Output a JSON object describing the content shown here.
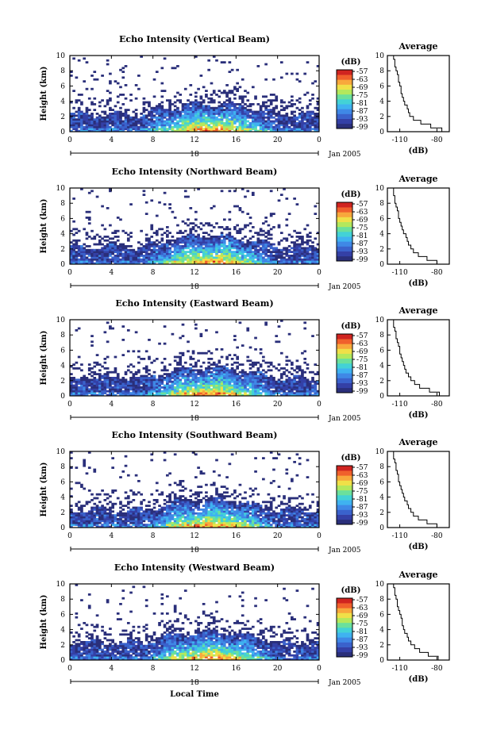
{
  "colors": {
    "scale": [
      "#2a2f7a",
      "#3440a6",
      "#3a62cc",
      "#3f88e6",
      "#3fb2f0",
      "#43d2d6",
      "#6be09c",
      "#b4e85c",
      "#f0e048",
      "#f8a83c",
      "#f0602c",
      "#d02420"
    ]
  },
  "figure": {
    "xlabel": "Local Time",
    "date_label": "Jan 2005"
  },
  "chart_data": [
    {
      "type": "heatmap",
      "title": "Echo Intensity (Vertical Beam)",
      "ylabel": "Height (km)",
      "x_ticks": [
        "0",
        "4",
        "8",
        "12",
        "16",
        "20",
        "0"
      ],
      "x_range": [
        0,
        24
      ],
      "y_ticks": [
        "0",
        "2",
        "4",
        "6",
        "8",
        "10"
      ],
      "y_range": [
        0,
        10
      ],
      "day_label": "18",
      "colorbar": {
        "unit": "(dB)",
        "ticks": [
          "-57",
          "-63",
          "-69",
          "-75",
          "-81",
          "-87",
          "-93",
          "-99"
        ]
      },
      "profile": {
        "title": "Average",
        "xlabel": "(dB)",
        "x_ticks": [
          "-110",
          "-80"
        ],
        "y_ticks": [
          "0",
          "2",
          "4",
          "6",
          "8",
          "10"
        ],
        "height_km": [
          0,
          0.5,
          1,
          1.5,
          2,
          2.5,
          3,
          3.5,
          4,
          4.5,
          5,
          5.5,
          6,
          6.5,
          7,
          7.5,
          8,
          8.5,
          9,
          9.5
        ],
        "echo_db": [
          -76,
          -85,
          -93,
          -99,
          -102,
          -103,
          -104,
          -106,
          -107,
          -108,
          -109,
          -109,
          -110,
          -111,
          -111,
          -112,
          -113,
          -114,
          -114,
          -115
        ]
      }
    },
    {
      "type": "heatmap",
      "title": "Echo Intensity (Northward Beam)",
      "ylabel": "Height (km)",
      "x_ticks": [
        "0",
        "4",
        "8",
        "12",
        "16",
        "20",
        "0"
      ],
      "x_range": [
        0,
        24
      ],
      "y_ticks": [
        "0",
        "2",
        "4",
        "6",
        "8",
        "10"
      ],
      "y_range": [
        0,
        10
      ],
      "day_label": "18",
      "colorbar": {
        "unit": "(dB)",
        "ticks": [
          "-57",
          "-63",
          "-69",
          "-75",
          "-81",
          "-87",
          "-93",
          "-99"
        ]
      },
      "profile": {
        "title": "Average",
        "xlabel": "(dB)",
        "x_ticks": [
          "-110",
          "-80"
        ],
        "y_ticks": [
          "0",
          "2",
          "4",
          "6",
          "8",
          "10"
        ],
        "height_km": [
          0,
          0.5,
          1,
          1.5,
          2,
          2.5,
          3,
          3.5,
          4,
          4.5,
          5,
          5.5,
          6,
          6.5,
          7,
          7.5,
          8,
          8.5,
          9,
          9.5
        ],
        "echo_db": [
          -80,
          -88,
          -95,
          -99,
          -101,
          -103,
          -104,
          -105,
          -107,
          -108,
          -109,
          -110,
          -111,
          -111,
          -112,
          -113,
          -114,
          -114,
          -115,
          -115
        ]
      }
    },
    {
      "type": "heatmap",
      "title": "Echo Intensity (Eastward Beam)",
      "ylabel": "Height (km)",
      "x_ticks": [
        "0",
        "4",
        "8",
        "12",
        "16",
        "20",
        "0"
      ],
      "x_range": [
        0,
        24
      ],
      "y_ticks": [
        "0",
        "2",
        "4",
        "6",
        "8",
        "10"
      ],
      "y_range": [
        0,
        10
      ],
      "day_label": "18",
      "colorbar": {
        "unit": "(dB)",
        "ticks": [
          "-57",
          "-63",
          "-69",
          "-75",
          "-81",
          "-87",
          "-93",
          "-99"
        ]
      },
      "profile": {
        "title": "Average",
        "xlabel": "(dB)",
        "x_ticks": [
          "-110",
          "-80"
        ],
        "y_ticks": [
          "0",
          "2",
          "4",
          "6",
          "8",
          "10"
        ],
        "height_km": [
          0,
          0.5,
          1,
          1.5,
          2,
          2.5,
          3,
          3.5,
          4,
          4.5,
          5,
          5.5,
          6,
          6.5,
          7,
          7.5,
          8,
          8.5,
          9,
          9.5
        ],
        "echo_db": [
          -78,
          -86,
          -94,
          -98,
          -101,
          -103,
          -105,
          -106,
          -107,
          -108,
          -109,
          -110,
          -110,
          -111,
          -112,
          -113,
          -113,
          -114,
          -115,
          -115
        ]
      }
    },
    {
      "type": "heatmap",
      "title": "Echo Intensity (Southward Beam)",
      "ylabel": "Height (km)",
      "x_ticks": [
        "0",
        "4",
        "8",
        "12",
        "16",
        "20",
        "0"
      ],
      "x_range": [
        0,
        24
      ],
      "y_ticks": [
        "0",
        "2",
        "4",
        "6",
        "8",
        "10"
      ],
      "y_range": [
        0,
        10
      ],
      "day_label": "18",
      "colorbar": {
        "unit": "(dB)",
        "ticks": [
          "-57",
          "-63",
          "-69",
          "-75",
          "-81",
          "-87",
          "-93",
          "-99"
        ]
      },
      "profile": {
        "title": "Average",
        "xlabel": "(dB)",
        "x_ticks": [
          "-110",
          "-80"
        ],
        "y_ticks": [
          "0",
          "2",
          "4",
          "6",
          "8",
          "10"
        ],
        "height_km": [
          0,
          0.5,
          1,
          1.5,
          2,
          2.5,
          3,
          3.5,
          4,
          4.5,
          5,
          5.5,
          6,
          6.5,
          7,
          7.5,
          8,
          8.5,
          9,
          9.5
        ],
        "echo_db": [
          -80,
          -88,
          -95,
          -99,
          -101,
          -103,
          -104,
          -106,
          -107,
          -108,
          -109,
          -110,
          -111,
          -111,
          -112,
          -113,
          -113,
          -114,
          -115,
          -115
        ]
      }
    },
    {
      "type": "heatmap",
      "title": "Echo Intensity (Westward Beam)",
      "ylabel": "Height (km)",
      "x_ticks": [
        "0",
        "4",
        "8",
        "12",
        "16",
        "20",
        "0"
      ],
      "x_range": [
        0,
        24
      ],
      "y_ticks": [
        "0",
        "2",
        "4",
        "6",
        "8",
        "10"
      ],
      "y_range": [
        0,
        10
      ],
      "day_label": "18",
      "colorbar": {
        "unit": "(dB)",
        "ticks": [
          "-57",
          "-63",
          "-69",
          "-75",
          "-81",
          "-87",
          "-93",
          "-99"
        ]
      },
      "profile": {
        "title": "Average",
        "xlabel": "(dB)",
        "x_ticks": [
          "-110",
          "-80"
        ],
        "y_ticks": [
          "0",
          "2",
          "4",
          "6",
          "8",
          "10"
        ],
        "height_km": [
          0,
          0.5,
          1,
          1.5,
          2,
          2.5,
          3,
          3.5,
          4,
          4.5,
          5,
          5.5,
          6,
          6.5,
          7,
          7.5,
          8,
          8.5,
          9,
          9.5
        ],
        "echo_db": [
          -79,
          -87,
          -94,
          -98,
          -101,
          -103,
          -104,
          -106,
          -107,
          -108,
          -108,
          -109,
          -110,
          -111,
          -112,
          -112,
          -113,
          -114,
          -114,
          -115
        ]
      }
    }
  ]
}
